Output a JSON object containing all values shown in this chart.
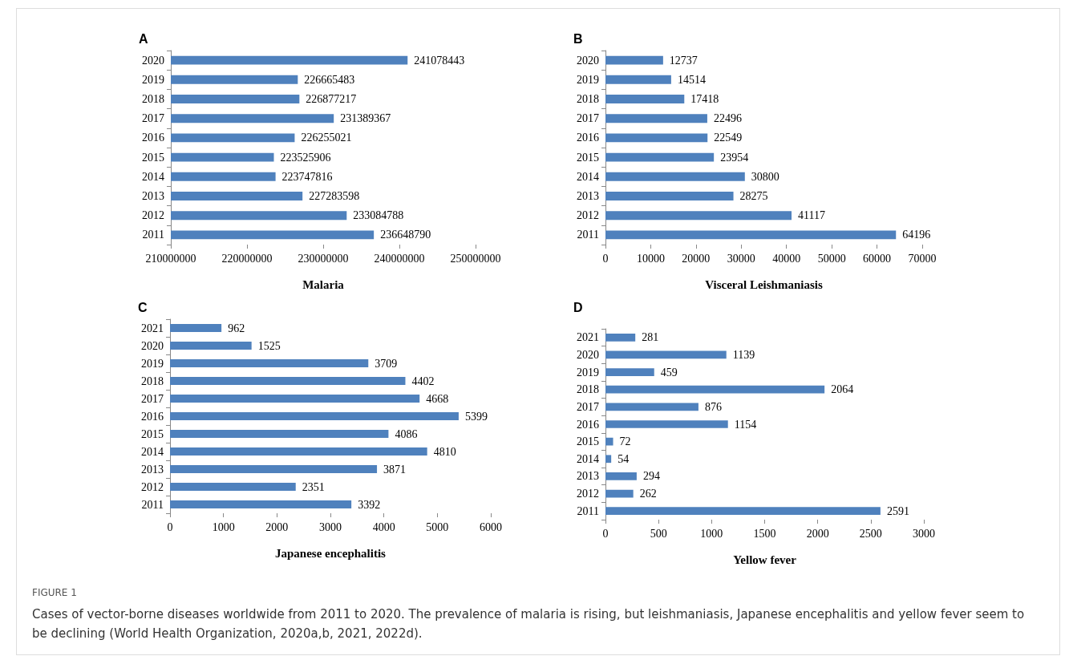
{
  "chart_data": [
    {
      "type": "bar",
      "orientation": "horizontal",
      "title": "A",
      "xlabel": "Malaria",
      "categories": [
        "2020",
        "2019",
        "2018",
        "2017",
        "2016",
        "2015",
        "2014",
        "2013",
        "2012",
        "2011"
      ],
      "values": [
        241078443,
        226665483,
        226877217,
        231389367,
        226255021,
        223525906,
        223747816,
        227283598,
        233084788,
        236648790
      ],
      "color": "#4f81bd",
      "xlim": [
        210000000,
        250000000
      ],
      "xticks": [
        210000000,
        220000000,
        230000000,
        240000000,
        250000000
      ],
      "data_labels": true
    },
    {
      "type": "bar",
      "orientation": "horizontal",
      "title": "B",
      "xlabel": "Visceral Leishmaniasis",
      "categories": [
        "2020",
        "2019",
        "2018",
        "2017",
        "2016",
        "2015",
        "2014",
        "2013",
        "2012",
        "2011"
      ],
      "values": [
        12737,
        14514,
        17418,
        22496,
        22549,
        23954,
        30800,
        28275,
        41117,
        64196
      ],
      "color": "#4f81bd",
      "xlim": [
        0,
        70000
      ],
      "xticks": [
        0,
        10000,
        20000,
        30000,
        40000,
        50000,
        60000,
        70000
      ],
      "data_labels": true
    },
    {
      "type": "bar",
      "orientation": "horizontal",
      "title": "C",
      "xlabel": "Japanese encephalitis",
      "categories": [
        "2021",
        "2020",
        "2019",
        "2018",
        "2017",
        "2016",
        "2015",
        "2014",
        "2013",
        "2012",
        "2011"
      ],
      "values": [
        962,
        1525,
        3709,
        4402,
        4668,
        5399,
        4086,
        4810,
        3871,
        2351,
        3392
      ],
      "color": "#4f81bd",
      "xlim": [
        0,
        6000
      ],
      "xticks": [
        0,
        1000,
        2000,
        3000,
        4000,
        5000,
        6000
      ],
      "data_labels": true
    },
    {
      "type": "bar",
      "orientation": "horizontal",
      "title": "D",
      "xlabel": "Yellow fever",
      "categories": [
        "2021",
        "2020",
        "2019",
        "2018",
        "2017",
        "2016",
        "2015",
        "2014",
        "2013",
        "2012",
        "2011"
      ],
      "values": [
        281,
        1139,
        459,
        2064,
        876,
        1154,
        72,
        54,
        294,
        262,
        2591
      ],
      "color": "#4f81bd",
      "xlim": [
        0,
        3000
      ],
      "xticks": [
        0,
        500,
        1000,
        1500,
        2000,
        2500,
        3000
      ],
      "data_labels": true,
      "annotations": [
        "FIGURE 1",
        "Cases of vector-borne diseases worldwide from 2011 to 2020. The prevalence of malaria is rising, but leishmaniasis, Japanese encephalitis and yellow fever seem to be declining (World Health Organization, 2020a,b, 2021, 2022d)."
      ]
    }
  ]
}
